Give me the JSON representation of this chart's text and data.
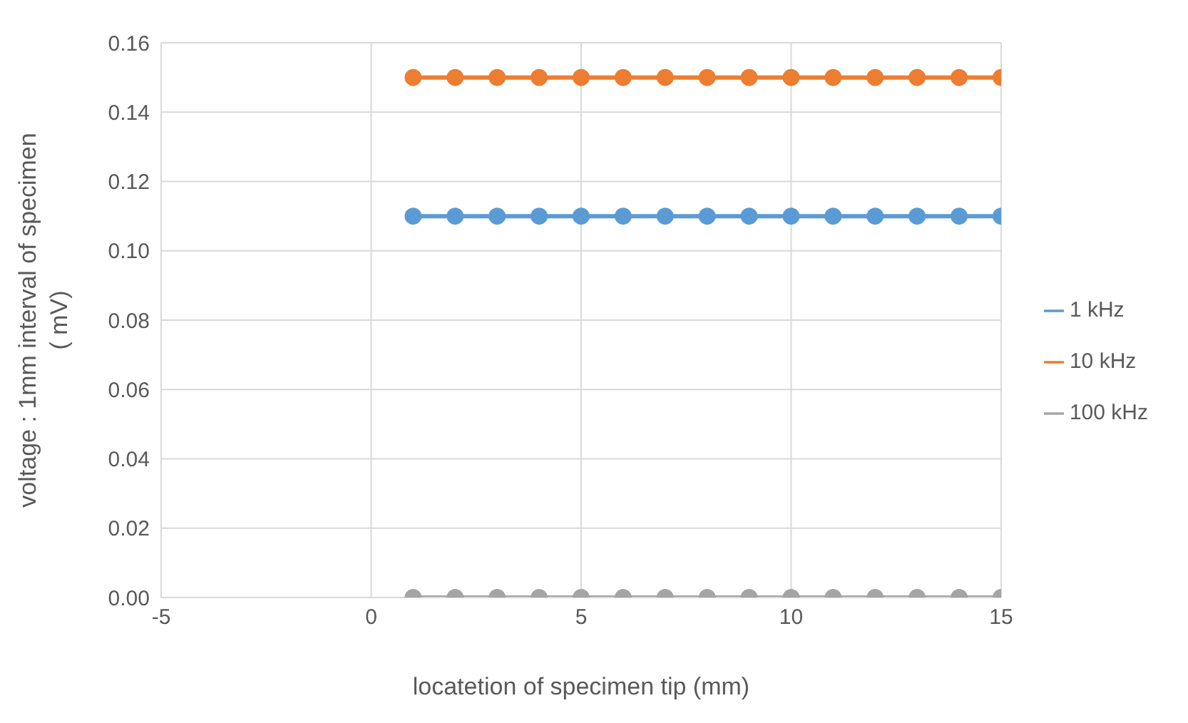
{
  "chart_data": {
    "type": "line",
    "xlabel": "locatetion of specimen tip (mm)",
    "ylabel": "voltage : 1mm interval of specimen\n( mV)",
    "x": [
      1,
      2,
      3,
      4,
      5,
      6,
      7,
      8,
      9,
      10,
      11,
      12,
      13,
      14,
      15
    ],
    "series": [
      {
        "name": "1 kHz",
        "color": "#5b9bd5",
        "values": [
          0.11,
          0.11,
          0.11,
          0.11,
          0.11,
          0.11,
          0.11,
          0.11,
          0.11,
          0.11,
          0.11,
          0.11,
          0.11,
          0.11,
          0.11
        ]
      },
      {
        "name": "10 kHz",
        "color": "#ed7d31",
        "values": [
          0.15,
          0.15,
          0.15,
          0.15,
          0.15,
          0.15,
          0.15,
          0.15,
          0.15,
          0.15,
          0.15,
          0.15,
          0.15,
          0.15,
          0.15
        ]
      },
      {
        "name": "100 kHz",
        "color": "#a5a5a5",
        "values": [
          0,
          0,
          0,
          0,
          0,
          0,
          0,
          0,
          0,
          0,
          0,
          0,
          0,
          0,
          0
        ]
      }
    ],
    "xlim": [
      -5,
      15
    ],
    "xticks": [
      -5,
      0,
      5,
      10,
      15
    ],
    "ylim": [
      0,
      0.16
    ],
    "yticks": [
      {
        "value": 0,
        "label": "0.00"
      },
      {
        "value": 0.02,
        "label": "0.02"
      },
      {
        "value": 0.04,
        "label": "0.04"
      },
      {
        "value": 0.06,
        "label": "0.06"
      },
      {
        "value": 0.08,
        "label": "0.08"
      },
      {
        "value": 0.1,
        "label": "0.10"
      },
      {
        "value": 0.12,
        "label": "0.12"
      },
      {
        "value": 0.14,
        "label": "0.14"
      },
      {
        "value": 0.16,
        "label": "0.16"
      }
    ],
    "grid": true,
    "legend": "right",
    "marker": "circle",
    "line_style": "solid"
  }
}
